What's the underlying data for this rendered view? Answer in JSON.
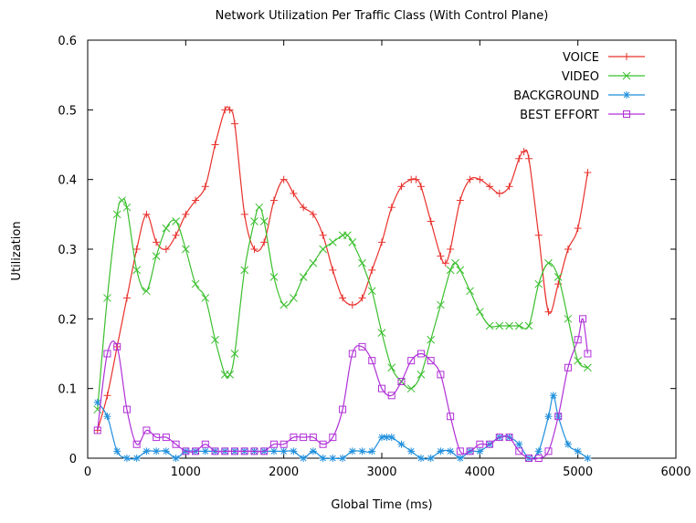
{
  "chart_data": {
    "type": "line",
    "title": "Network Utilization Per Traffic Class (With Control Plane)",
    "xlabel": "Global Time (ms)",
    "ylabel": "Utilization",
    "xlim": [
      0,
      6000
    ],
    "ylim": [
      0,
      0.6
    ],
    "xticks": [
      0,
      1000,
      2000,
      3000,
      4000,
      5000,
      6000
    ],
    "xtick_labels": [
      "0",
      "1000",
      "2000",
      "3000",
      "4000",
      "5000",
      "6000"
    ],
    "yticks": [
      0,
      0.1,
      0.2,
      0.3,
      0.4,
      0.5,
      0.6
    ],
    "ytick_labels": [
      "0",
      "0.1",
      "0.2",
      "0.3",
      "0.4",
      "0.5",
      "0.6"
    ],
    "grid": false,
    "legend_position": "top-right",
    "series": [
      {
        "name": "VOICE",
        "color": "#e8302b",
        "marker": "plus",
        "x": [
          100,
          200,
          300,
          400,
          500,
          600,
          700,
          800,
          900,
          1000,
          1100,
          1200,
          1300,
          1400,
          1450,
          1500,
          1600,
          1700,
          1800,
          1900,
          2000,
          2100,
          2200,
          2300,
          2400,
          2500,
          2600,
          2700,
          2800,
          2900,
          3000,
          3100,
          3200,
          3300,
          3350,
          3400,
          3500,
          3600,
          3650,
          3700,
          3800,
          3900,
          4000,
          4100,
          4200,
          4300,
          4400,
          4450,
          4500,
          4600,
          4700,
          4800,
          4900,
          5000,
          5100
        ],
        "y": [
          0.04,
          0.09,
          0.16,
          0.23,
          0.3,
          0.35,
          0.31,
          0.3,
          0.32,
          0.35,
          0.37,
          0.39,
          0.45,
          0.5,
          0.5,
          0.48,
          0.35,
          0.3,
          0.31,
          0.37,
          0.4,
          0.38,
          0.36,
          0.35,
          0.32,
          0.27,
          0.23,
          0.22,
          0.23,
          0.27,
          0.31,
          0.36,
          0.39,
          0.4,
          0.4,
          0.39,
          0.34,
          0.29,
          0.28,
          0.3,
          0.37,
          0.4,
          0.4,
          0.39,
          0.38,
          0.39,
          0.43,
          0.44,
          0.43,
          0.32,
          0.21,
          0.25,
          0.3,
          0.33,
          0.41
        ]
      },
      {
        "name": "VIDEO",
        "color": "#3bbf2e",
        "marker": "cross",
        "x": [
          100,
          200,
          300,
          350,
          400,
          500,
          600,
          700,
          800,
          900,
          1000,
          1100,
          1200,
          1300,
          1400,
          1450,
          1500,
          1600,
          1700,
          1750,
          1800,
          1900,
          2000,
          2100,
          2200,
          2300,
          2400,
          2500,
          2600,
          2650,
          2700,
          2800,
          2900,
          3000,
          3100,
          3200,
          3300,
          3400,
          3500,
          3600,
          3700,
          3750,
          3800,
          3900,
          4000,
          4100,
          4200,
          4300,
          4400,
          4500,
          4600,
          4700,
          4800,
          4900,
          5000,
          5100
        ],
        "y": [
          0.07,
          0.23,
          0.35,
          0.37,
          0.36,
          0.27,
          0.24,
          0.29,
          0.33,
          0.34,
          0.3,
          0.25,
          0.23,
          0.17,
          0.12,
          0.12,
          0.15,
          0.27,
          0.34,
          0.36,
          0.34,
          0.26,
          0.22,
          0.23,
          0.26,
          0.28,
          0.3,
          0.31,
          0.32,
          0.32,
          0.31,
          0.28,
          0.24,
          0.18,
          0.13,
          0.11,
          0.1,
          0.12,
          0.17,
          0.22,
          0.27,
          0.28,
          0.27,
          0.24,
          0.21,
          0.19,
          0.19,
          0.19,
          0.19,
          0.19,
          0.25,
          0.28,
          0.26,
          0.2,
          0.14,
          0.13
        ]
      },
      {
        "name": "BACKGROUND",
        "color": "#1f8fdc",
        "marker": "star",
        "x": [
          100,
          200,
          300,
          400,
          500,
          600,
          700,
          800,
          900,
          1000,
          1100,
          1200,
          1300,
          1400,
          1500,
          1600,
          1700,
          1800,
          1900,
          2000,
          2100,
          2200,
          2300,
          2400,
          2500,
          2600,
          2700,
          2800,
          2900,
          3000,
          3050,
          3100,
          3200,
          3300,
          3400,
          3500,
          3600,
          3700,
          3800,
          3900,
          4000,
          4100,
          4200,
          4300,
          4400,
          4500,
          4600,
          4700,
          4750,
          4800,
          4900,
          5000,
          5100
        ],
        "y": [
          0.08,
          0.06,
          0.01,
          0.0,
          0.0,
          0.01,
          0.01,
          0.01,
          0.0,
          0.01,
          0.01,
          0.01,
          0.01,
          0.01,
          0.01,
          0.01,
          0.01,
          0.01,
          0.01,
          0.01,
          0.01,
          0.0,
          0.01,
          0.0,
          0.0,
          0.0,
          0.01,
          0.01,
          0.01,
          0.03,
          0.03,
          0.03,
          0.02,
          0.01,
          0.0,
          0.0,
          0.01,
          0.01,
          0.0,
          0.01,
          0.01,
          0.02,
          0.03,
          0.03,
          0.02,
          0.0,
          0.01,
          0.06,
          0.09,
          0.06,
          0.02,
          0.01,
          0.0
        ]
      },
      {
        "name": "BEST EFFORT",
        "color": "#b030d8",
        "marker": "square",
        "x": [
          100,
          200,
          300,
          400,
          500,
          600,
          700,
          800,
          900,
          1000,
          1100,
          1200,
          1300,
          1400,
          1500,
          1600,
          1700,
          1800,
          1900,
          2000,
          2100,
          2200,
          2300,
          2400,
          2500,
          2600,
          2700,
          2800,
          2900,
          3000,
          3100,
          3200,
          3300,
          3400,
          3500,
          3600,
          3700,
          3800,
          3900,
          4000,
          4100,
          4200,
          4300,
          4400,
          4500,
          4600,
          4700,
          4800,
          4900,
          5000,
          5050,
          5100
        ],
        "y": [
          0.04,
          0.15,
          0.16,
          0.07,
          0.02,
          0.04,
          0.03,
          0.03,
          0.02,
          0.01,
          0.01,
          0.02,
          0.01,
          0.01,
          0.01,
          0.01,
          0.01,
          0.01,
          0.02,
          0.02,
          0.03,
          0.03,
          0.03,
          0.02,
          0.03,
          0.07,
          0.15,
          0.16,
          0.14,
          0.1,
          0.09,
          0.11,
          0.14,
          0.15,
          0.14,
          0.12,
          0.06,
          0.01,
          0.01,
          0.02,
          0.02,
          0.03,
          0.03,
          0.01,
          0.0,
          0.0,
          0.01,
          0.06,
          0.13,
          0.17,
          0.2,
          0.15
        ]
      }
    ]
  }
}
